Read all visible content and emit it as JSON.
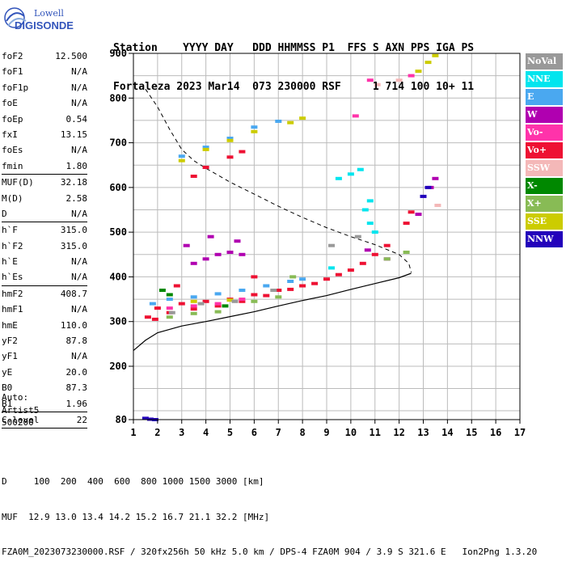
{
  "logo": {
    "line1": "Lowell",
    "line2": "DIGISONDE"
  },
  "header": {
    "line1": "Station    YYYY DAY   DDD HHMMSS P1  FFS S AXN PPS IGA PS",
    "line2": "Fortaleza 2023 Mar14  073 230000 RSF     1 714 100 10+ 11"
  },
  "params": [
    {
      "name": "foF2",
      "value": "12.500"
    },
    {
      "name": "foF1",
      "value": "N/A"
    },
    {
      "name": "foF1p",
      "value": "N/A"
    },
    {
      "name": "foE",
      "value": "N/A"
    },
    {
      "name": "foEp",
      "value": "0.54"
    },
    {
      "name": "fxI",
      "value": "13.15"
    },
    {
      "name": "foEs",
      "value": "N/A"
    },
    {
      "name": "fmin",
      "value": "1.80"
    },
    {
      "sep": true
    },
    {
      "name": "MUF(D)",
      "value": "32.18"
    },
    {
      "name": "M(D)",
      "value": "2.58"
    },
    {
      "name": "D",
      "value": "N/A"
    },
    {
      "sep": true
    },
    {
      "name": "h`F",
      "value": "315.0"
    },
    {
      "name": "h`F2",
      "value": "315.0"
    },
    {
      "name": "h`E",
      "value": "N/A"
    },
    {
      "name": "h`Es",
      "value": "N/A"
    },
    {
      "sep": true
    },
    {
      "name": "hmF2",
      "value": "408.7"
    },
    {
      "name": "hmF1",
      "value": "N/A"
    },
    {
      "name": "hmE",
      "value": "110.0"
    },
    {
      "name": "yF2",
      "value": "87.8"
    },
    {
      "name": "yF1",
      "value": "N/A"
    },
    {
      "name": "yE",
      "value": "20.0"
    },
    {
      "name": "B0",
      "value": "87.3"
    },
    {
      "name": "B1",
      "value": "1.96"
    },
    {
      "sep": true
    },
    {
      "name": "C-level",
      "value": "22"
    },
    {
      "sep": true
    }
  ],
  "auto": {
    "line1": "Auto:",
    "line2": "Artist5",
    "line3": "500200"
  },
  "legend": [
    {
      "label": "NoVal",
      "color": "#999999"
    },
    {
      "label": "NNE",
      "color": "#00e5ee"
    },
    {
      "label": "E",
      "color": "#4aa8f0"
    },
    {
      "label": "W",
      "color": "#b000b0"
    },
    {
      "label": "Vo-",
      "color": "#ff33aa"
    },
    {
      "label": "Vo+",
      "color": "#ee1133"
    },
    {
      "label": "SSW",
      "color": "#f4b8b8"
    },
    {
      "label": "X-",
      "color": "#008800"
    },
    {
      "label": "X+",
      "color": "#88bb55"
    },
    {
      "label": "SSE",
      "color": "#cccc00"
    },
    {
      "label": "NNW",
      "color": "#2200bb"
    }
  ],
  "footer": {
    "line1": "D     100  200  400  600  800 1000 1500 3000 [km]",
    "line2": "MUF  12.9 13.0 13.4 14.2 15.2 16.7 21.1 32.2 [MHz]",
    "line3": "FZA0M_2023073230000.RSF / 320fx256h 50 kHz 5.0 km / DPS-4 FZA0M 904 / 3.9 S 321.6 E   Ion2Png 1.3.20"
  },
  "chart_data": {
    "type": "scatter",
    "title": "",
    "xlabel": "",
    "ylabel": "",
    "xlim": [
      1,
      17
    ],
    "ylim": [
      80,
      900
    ],
    "x_ticks": [
      1,
      2,
      3,
      4,
      5,
      6,
      7,
      8,
      9,
      10,
      11,
      12,
      13,
      14,
      15,
      16,
      17
    ],
    "y_ticks": [
      80,
      200,
      300,
      400,
      500,
      600,
      700,
      800,
      900
    ],
    "y_scale_note": "compressed below 200 km",
    "grid": true,
    "legend_placement": "right",
    "series": [
      {
        "name": "E",
        "color": "#4aa8f0",
        "points": [
          [
            1.8,
            340
          ],
          [
            2.5,
            350
          ],
          [
            3.5,
            355
          ],
          [
            4.5,
            362
          ],
          [
            5.5,
            370
          ],
          [
            6.5,
            380
          ],
          [
            7.5,
            390
          ],
          [
            8,
            395
          ],
          [
            3,
            670
          ],
          [
            4,
            690
          ],
          [
            5,
            710
          ],
          [
            6,
            735
          ],
          [
            7,
            748
          ]
        ]
      },
      {
        "name": "Vo+",
        "color": "#ee1133",
        "points": [
          [
            1.9,
            305
          ],
          [
            2.5,
            320
          ],
          [
            3.5,
            328
          ],
          [
            4.5,
            335
          ],
          [
            5.5,
            345
          ],
          [
            6.5,
            358
          ],
          [
            7.5,
            372
          ],
          [
            8.5,
            385
          ],
          [
            9.5,
            405
          ],
          [
            10.5,
            430
          ],
          [
            11.5,
            470
          ],
          [
            12.3,
            520
          ],
          [
            12.5,
            545
          ],
          [
            1.6,
            310
          ],
          [
            2.8,
            380
          ],
          [
            6,
            400
          ],
          [
            2,
            330
          ],
          [
            3,
            340
          ],
          [
            4,
            345
          ],
          [
            5,
            350
          ],
          [
            6,
            360
          ],
          [
            7,
            370
          ],
          [
            8,
            380
          ],
          [
            9,
            395
          ],
          [
            10,
            415
          ],
          [
            11,
            450
          ],
          [
            3.5,
            625
          ],
          [
            4,
            645
          ],
          [
            5,
            668
          ],
          [
            5.5,
            680
          ]
        ]
      },
      {
        "name": "W",
        "color": "#b000b0",
        "points": [
          [
            3.5,
            430
          ],
          [
            4,
            440
          ],
          [
            4.5,
            450
          ],
          [
            5,
            455
          ],
          [
            5.5,
            450
          ],
          [
            3.2,
            470
          ],
          [
            4.2,
            490
          ],
          [
            5.3,
            480
          ],
          [
            10.7,
            460
          ],
          [
            11.5,
            440
          ],
          [
            13.3,
            600
          ],
          [
            13.5,
            620
          ],
          [
            12.8,
            540
          ]
        ]
      },
      {
        "name": "Vo-",
        "color": "#ff33aa",
        "points": [
          [
            2.5,
            330
          ],
          [
            3.5,
            335
          ],
          [
            4.5,
            340
          ],
          [
            5.5,
            350
          ],
          [
            10.2,
            760
          ],
          [
            10.8,
            840
          ],
          [
            12.5,
            850
          ]
        ]
      },
      {
        "name": "SSE",
        "color": "#cccc00",
        "points": [
          [
            3,
            660
          ],
          [
            4,
            685
          ],
          [
            5,
            705
          ],
          [
            6,
            725
          ],
          [
            7.5,
            745
          ],
          [
            8,
            755
          ],
          [
            3.5,
            345
          ],
          [
            5,
            348
          ],
          [
            12.8,
            860
          ],
          [
            13.2,
            880
          ],
          [
            13.5,
            895
          ]
        ]
      },
      {
        "name": "NNE",
        "color": "#00e5ee",
        "points": [
          [
            10.6,
            550
          ],
          [
            10.8,
            570
          ],
          [
            10.8,
            520
          ],
          [
            11,
            500
          ],
          [
            9.5,
            620
          ],
          [
            10,
            630
          ],
          [
            10.4,
            640
          ],
          [
            9.2,
            420
          ]
        ]
      },
      {
        "name": "X+",
        "color": "#88bb55",
        "points": [
          [
            2.5,
            310
          ],
          [
            3.5,
            318
          ],
          [
            4.5,
            322
          ],
          [
            6,
            345
          ],
          [
            7,
            355
          ],
          [
            11.5,
            440
          ],
          [
            12.3,
            455
          ],
          [
            7.6,
            400
          ]
        ]
      },
      {
        "name": "X-",
        "color": "#008800",
        "points": [
          [
            2.2,
            370
          ],
          [
            2.5,
            360
          ],
          [
            4.8,
            335
          ]
        ]
      },
      {
        "name": "NNW",
        "color": "#2200bb",
        "points": [
          [
            1.5,
            83
          ],
          [
            1.7,
            81
          ],
          [
            1.9,
            80
          ],
          [
            13,
            580
          ],
          [
            13.2,
            600
          ]
        ]
      },
      {
        "name": "NoVal",
        "color": "#999999",
        "points": [
          [
            2.6,
            320
          ],
          [
            3.8,
            340
          ],
          [
            5.2,
            345
          ],
          [
            6.8,
            370
          ],
          [
            9.2,
            470
          ],
          [
            10.3,
            490
          ]
        ]
      },
      {
        "name": "SSW",
        "color": "#f4b8b8",
        "points": [
          [
            11.1,
            830
          ],
          [
            12,
            840
          ],
          [
            13.6,
            560
          ]
        ]
      }
    ],
    "profile_curve": [
      [
        1,
        235
      ],
      [
        1.5,
        258
      ],
      [
        2,
        275
      ],
      [
        3,
        290
      ],
      [
        4,
        300
      ],
      [
        5,
        311
      ],
      [
        6,
        322
      ],
      [
        7,
        335
      ],
      [
        8,
        347
      ],
      [
        9,
        358
      ],
      [
        10,
        372
      ],
      [
        11,
        385
      ],
      [
        12,
        398
      ],
      [
        12.5,
        408
      ]
    ],
    "dashed_curve": [
      [
        1.5,
        820
      ],
      [
        2,
        780
      ],
      [
        2.5,
        730
      ],
      [
        3,
        685
      ],
      [
        3.5,
        660
      ],
      [
        4,
        643
      ],
      [
        5,
        612
      ],
      [
        6,
        585
      ],
      [
        7,
        558
      ],
      [
        8,
        533
      ],
      [
        9,
        510
      ],
      [
        10,
        490
      ],
      [
        11,
        472
      ],
      [
        12,
        450
      ],
      [
        12.4,
        430
      ],
      [
        12.5,
        410
      ]
    ]
  }
}
